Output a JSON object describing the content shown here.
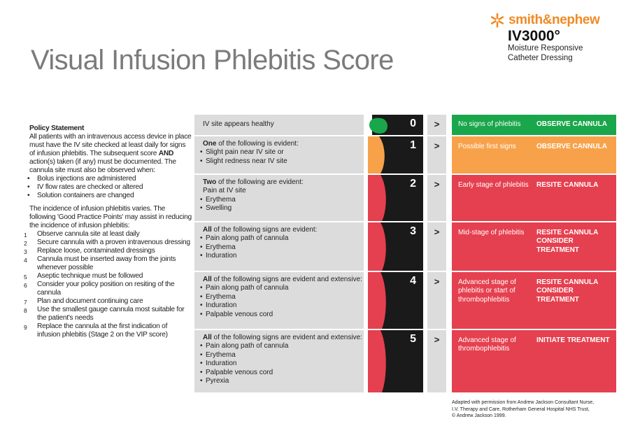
{
  "title": "Visual Infusion Phlebitis Score",
  "logo": {
    "brand": "smith&nephew",
    "product": "IV3000°",
    "tagline_line1": "Moisture Responsive",
    "tagline_line2": "Catheter Dressing"
  },
  "policy": {
    "heading": "Policy Statement",
    "intro": "All patients with an intravenous access device in place must have the IV site checked at least daily for signs of infusion phlebitis. The subsequent score",
    "and_word": "AND",
    "intro_cont": "action(s) taken (if any) must be documented. The cannula site must also be observed when:",
    "when_items": [
      "Bolus injections are administered",
      "IV flow rates are checked or altered",
      "Solution containers are changed"
    ],
    "incidence": "The incidence of infusion phlebitis varies. The following 'Good Practice Points' may assist in reducing the incidence of infusion phlebitis:",
    "points": [
      {
        "n": "1",
        "text": "Observe cannula site at least daily"
      },
      {
        "n": "2",
        "text": "Secure cannula with a proven intravenous dressing"
      },
      {
        "n": "3",
        "text": "Replace loose, contaminated dressings"
      },
      {
        "n": "4",
        "text": "Cannula must be inserted away from the joints whenever possible"
      },
      {
        "n": "5",
        "text": "Aseptic technique must be followed"
      },
      {
        "n": "6",
        "text": "Consider your policy position on resiting of the cannula"
      },
      {
        "n": "7",
        "text": "Plan and document continuing care"
      },
      {
        "n": "8",
        "text": "Use the smallest gauge cannula most suitable for the patient's needs"
      },
      {
        "n": "9",
        "text": "Replace the cannula at the first indication of infusion phlebitis (Stage 2 on the VIP score)"
      }
    ]
  },
  "colors": {
    "green": "#1aa64b",
    "orange": "#f7a24a",
    "red": "#e5404f",
    "gray": "#dcdcdc",
    "black": "#1a1a1a"
  },
  "arrow_symbol": ">",
  "scores": [
    {
      "score": "0",
      "lead": "IV site appears healthy",
      "lead_bold": "",
      "lead_rest": "",
      "signs": [],
      "description": "No signs of phlebitis",
      "action": "OBSERVE CANNULA",
      "color": "#1aa64b"
    },
    {
      "score": "1",
      "lead": "",
      "lead_bold": "One",
      "lead_rest": " of the following is evident:",
      "signs": [
        "Slight pain near IV site or",
        "Slight redness near IV site"
      ],
      "description": "Possible first signs",
      "action": "OBSERVE CANNULA",
      "color": "#f7a24a"
    },
    {
      "score": "2",
      "lead": "",
      "lead_bold": "Two",
      "lead_rest": " of the following are evident:",
      "subline": "Pain at IV site",
      "signs": [
        "Erythema",
        "Swelling"
      ],
      "description": "Early stage of phlebitis",
      "action": "RESITE CANNULA",
      "color": "#e5404f"
    },
    {
      "score": "3",
      "lead": "",
      "lead_bold": "All",
      "lead_rest": " of the following signs are evident:",
      "signs": [
        "Pain along path of cannula",
        "Erythema",
        "Induration"
      ],
      "description": "Mid-stage of phlebitis",
      "action": "RESITE CANNULA CONSIDER TREATMENT",
      "color": "#e5404f"
    },
    {
      "score": "4",
      "lead": "",
      "lead_bold": "All",
      "lead_rest": " of the following signs are evident and extensive:",
      "signs": [
        "Pain along path of cannula",
        "Erythema",
        "Induration",
        "Palpable venous cord"
      ],
      "description": "Advanced stage of phlebitis or start of thrombophlebitis",
      "action": "RESITE CANNULA CONSIDER TREATMENT",
      "color": "#e5404f"
    },
    {
      "score": "5",
      "lead": "",
      "lead_bold": "All",
      "lead_rest": " of the following signs are evident and extensive:",
      "signs": [
        "Pain along path of cannula",
        "Erythema",
        "Induration",
        "Palpable venous cord",
        "Pyrexia"
      ],
      "description": "Advanced stage of thrombophlebitis",
      "action": "INITIATE TREATMENT",
      "color": "#e5404f"
    }
  ],
  "credit": {
    "line1": "Adapted with permission from Andrew Jackson Consultant Nurse,",
    "line2": "I.V. Therapy and Care, Rotherham General Hospital NHS Trust,",
    "line3": "© Andrew Jackson 1999."
  }
}
